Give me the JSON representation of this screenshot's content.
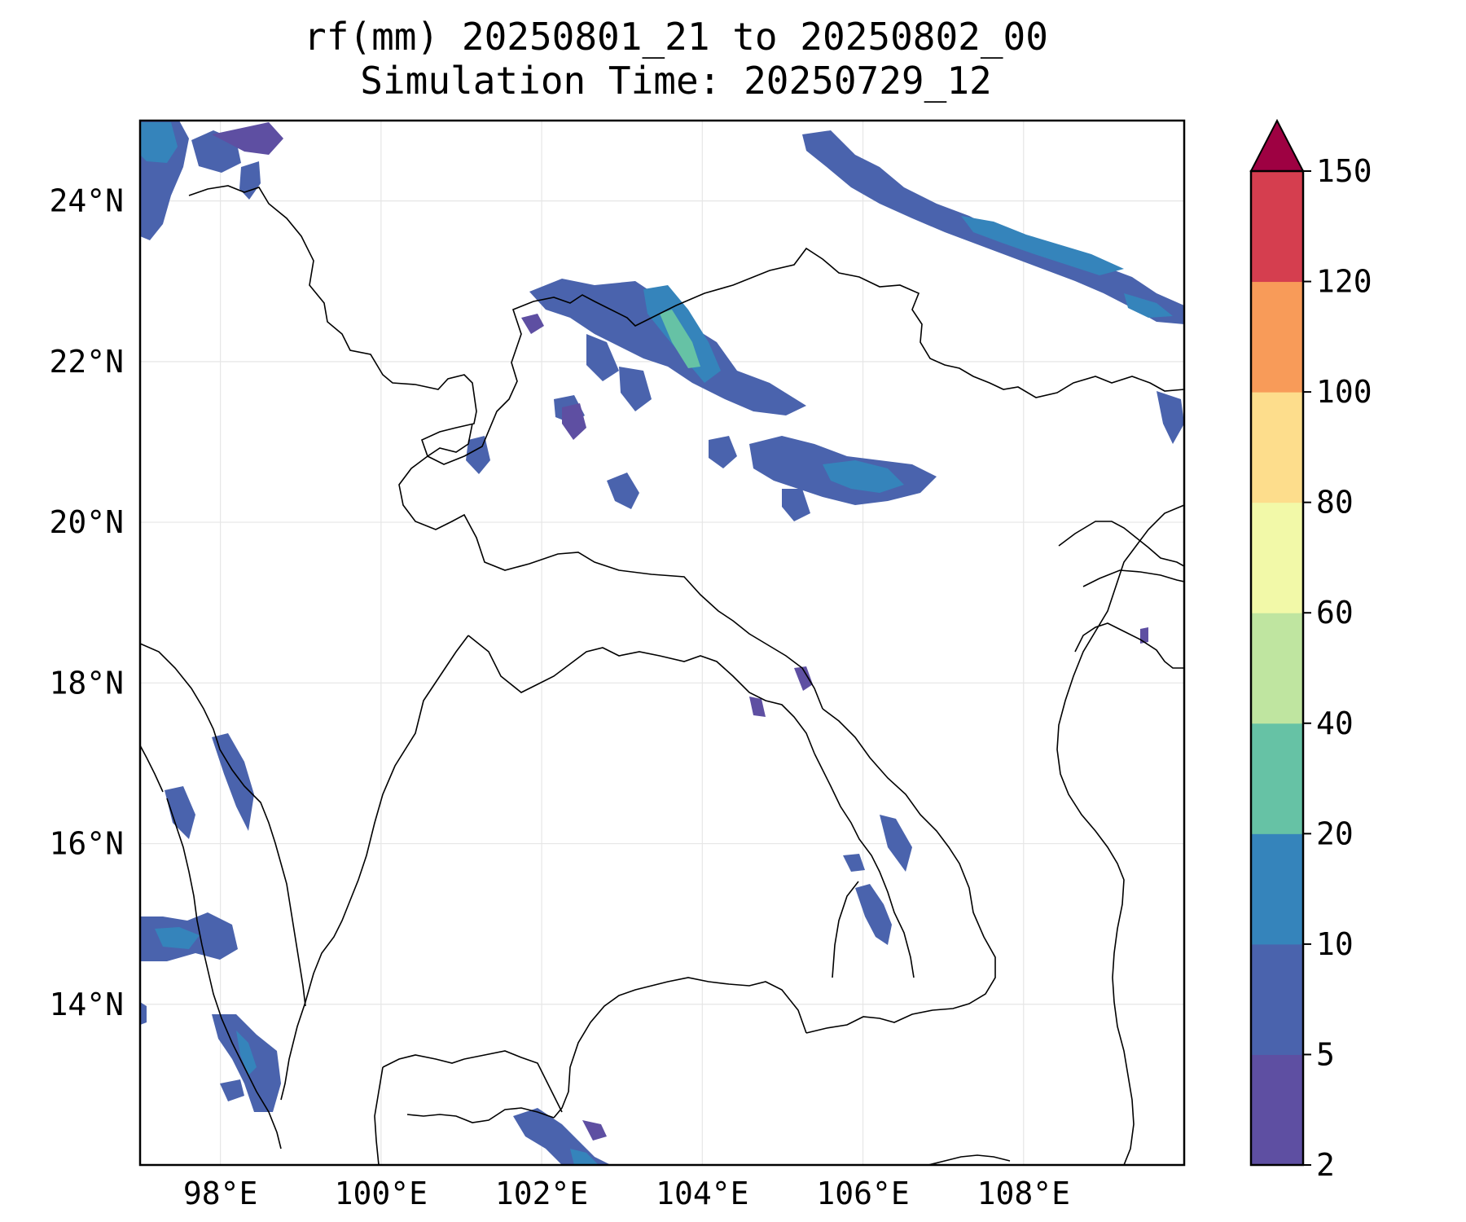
{
  "title": {
    "line1": "rf(mm) 20250801_21 to 20250802_00",
    "line2": "Simulation Time: 20250729_12"
  },
  "map": {
    "projection": "PlateCarree",
    "lon_range": [
      97.0,
      110.0
    ],
    "lat_range": [
      12.0,
      25.0
    ],
    "gridlines": true,
    "x_ticks": [
      {
        "value": 98,
        "label": "98°E"
      },
      {
        "value": 100,
        "label": "100°E"
      },
      {
        "value": 102,
        "label": "102°E"
      },
      {
        "value": 104,
        "label": "104°E"
      },
      {
        "value": 106,
        "label": "106°E"
      },
      {
        "value": 108,
        "label": "108°E"
      }
    ],
    "y_ticks": [
      {
        "value": 14,
        "label": "14°N"
      },
      {
        "value": 16,
        "label": "16°N"
      },
      {
        "value": 18,
        "label": "18°N"
      },
      {
        "value": 20,
        "label": "20°N"
      },
      {
        "value": 22,
        "label": "22°N"
      },
      {
        "value": 24,
        "label": "24°N"
      }
    ]
  },
  "colorbar": {
    "extend": "max",
    "extend_color": "#9e0142",
    "levels": [
      {
        "label": "2",
        "color": "#5e4fa2"
      },
      {
        "label": "5",
        "color": "#4a63ad"
      },
      {
        "label": "10",
        "color": "#3584bb"
      },
      {
        "label": "20",
        "color": "#66c2a5"
      },
      {
        "label": "40",
        "color": "#bfe5a0"
      },
      {
        "label": "60",
        "color": "#f2f9a8"
      },
      {
        "label": "80",
        "color": "#fddd8c"
      },
      {
        "label": "100",
        "color": "#f89b59"
      },
      {
        "label": "120",
        "color": "#d53e4f"
      },
      {
        "label": "150",
        "color": ""
      }
    ]
  }
}
